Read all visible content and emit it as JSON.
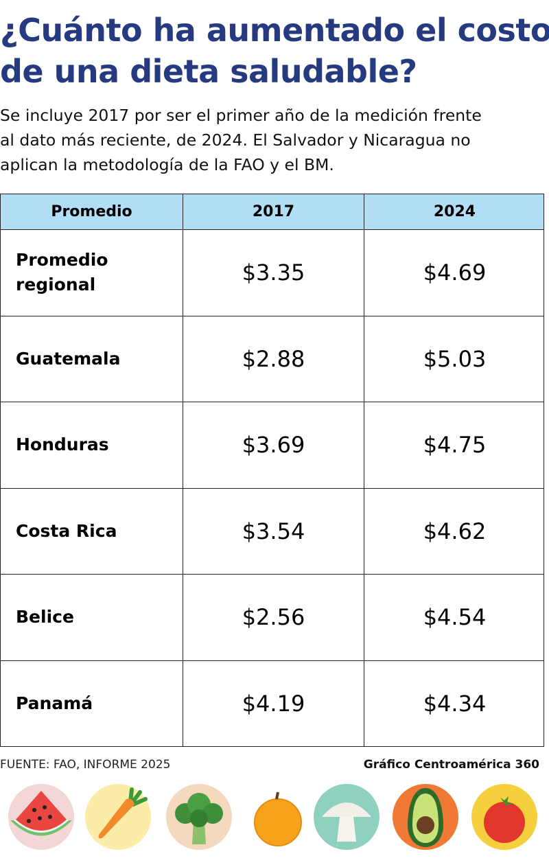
{
  "title": {
    "line1": "¿Cuánto ha aumentado el costo",
    "line2": "de una dieta saludable?"
  },
  "subtitle": {
    "line1": "Se incluye 2017 por ser el primer año de la medición frente",
    "line2": "al dato más reciente, de 2024. El Salvador y Nicaragua no",
    "line3": "aplican la metodología de la FAO y el BM."
  },
  "colors": {
    "title": "#263a80",
    "header_bg": "#b1ddf5",
    "border": "#222222"
  },
  "chart_data": {
    "type": "table",
    "columns": [
      "Promedio",
      "2017",
      "2024"
    ],
    "rows": [
      {
        "label_line1": "Promedio",
        "label_line2": "regional",
        "y2017": "$3.35",
        "y2024": "$4.69"
      },
      {
        "label_line1": "Guatemala",
        "label_line2": "",
        "y2017": "$2.88",
        "y2024": "$5.03"
      },
      {
        "label_line1": "Honduras",
        "label_line2": "",
        "y2017": "$3.69",
        "y2024": "$4.75"
      },
      {
        "label_line1": "Costa Rica",
        "label_line2": "",
        "y2017": "$3.54",
        "y2024": "$4.62"
      },
      {
        "label_line1": "Belice",
        "label_line2": "",
        "y2017": "$2.56",
        "y2024": "$4.54"
      },
      {
        "label_line1": "Panamá",
        "label_line2": "",
        "y2017": "$4.19",
        "y2024": "$4.34"
      }
    ]
  },
  "footer": {
    "source": "FUENTE: FAO, INFORME 2025",
    "credit": "Gráfico Centroamérica 360"
  },
  "icons": [
    "watermelon-icon",
    "carrot-icon",
    "broccoli-icon",
    "orange-icon",
    "mushroom-icon",
    "avocado-icon",
    "tomato-icon"
  ]
}
